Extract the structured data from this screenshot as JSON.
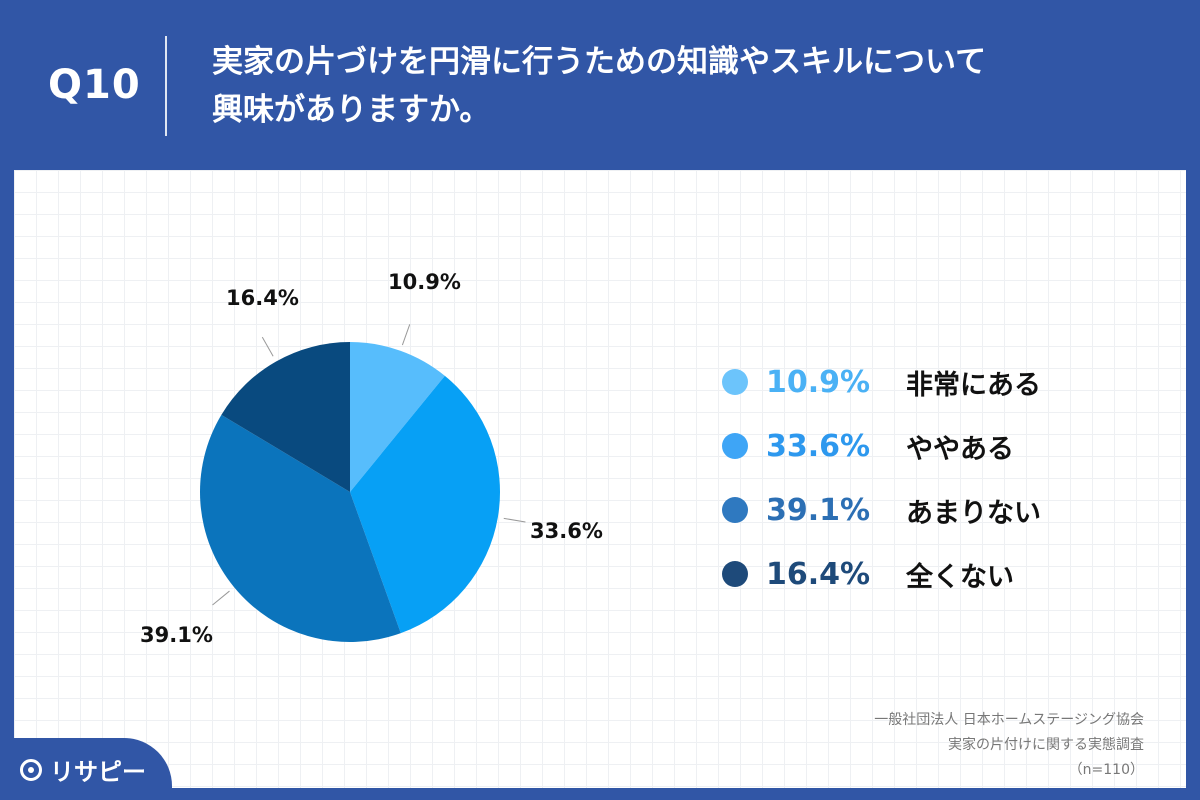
{
  "header": {
    "question_number": "Q10",
    "title_line1": "実家の片づけを円滑に行うための知識やスキルについて",
    "title_line2": "興味がありますか。"
  },
  "chart_data": {
    "type": "pie",
    "slices": [
      {
        "label": "非常にある",
        "value": 10.9,
        "display": "10.9%",
        "color": "#57bdfc"
      },
      {
        "label": "ややある",
        "value": 33.6,
        "display": "33.6%",
        "color": "#07a0f5"
      },
      {
        "label": "あまりない",
        "value": 39.1,
        "display": "39.1%",
        "color": "#0b74bc"
      },
      {
        "label": "全くない",
        "value": 16.4,
        "display": "16.4%",
        "color": "#094a7f"
      }
    ],
    "legend_colors": [
      "#6cc4fb",
      "#3ea5f6",
      "#2f79c0",
      "#1e4a7a"
    ],
    "legend_placement": "right"
  },
  "source": {
    "line1": "一般社団法人 日本ホームステージング協会",
    "line2": "実家の片付けに関する実態調査",
    "line3": "（n=110）"
  },
  "logo": {
    "text": "リサピー",
    "icon": "pin-icon"
  }
}
